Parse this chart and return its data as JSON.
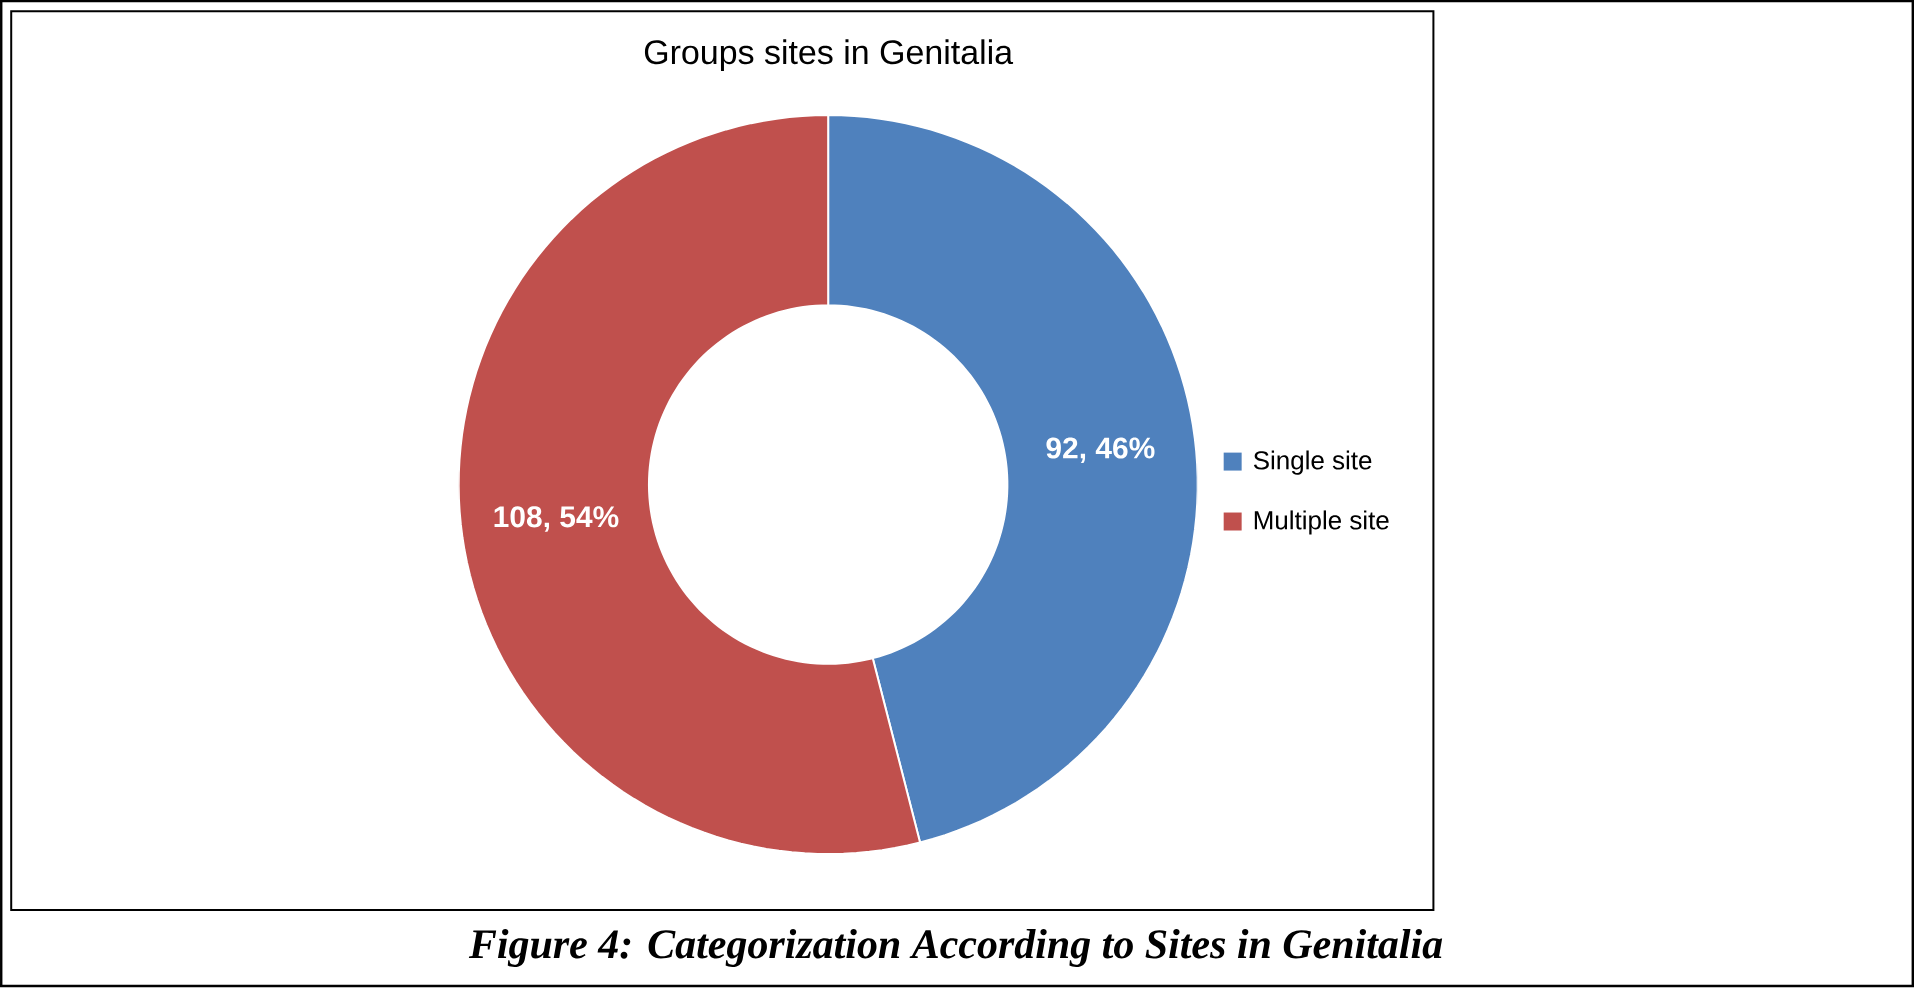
{
  "chart_data": {
    "type": "donut",
    "title": "Groups sites in Genitalia",
    "categories": [
      "Single site",
      "Multiple site"
    ],
    "values": [
      92,
      108
    ],
    "colors": [
      "#4f81bd",
      "#c0504d"
    ],
    "value_labels": [
      "92, 46%",
      "108, 54%"
    ],
    "legend": "right",
    "annotations": [
      "Figure 4: Categorization According to Sites in Genitalia"
    ]
  }
}
